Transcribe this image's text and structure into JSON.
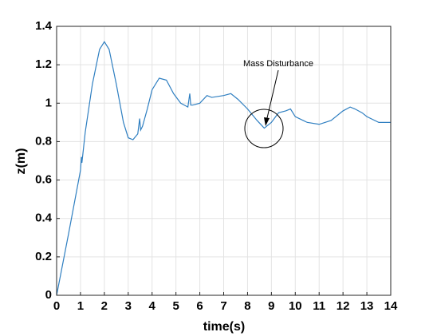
{
  "chart_data": {
    "type": "line",
    "xlabel": "time(s)",
    "ylabel": "z(m)",
    "annotation": "Mass Disturbance",
    "x": [
      0,
      0.5,
      1,
      1.04,
      1.06,
      1.2,
      1.5,
      1.8,
      2.0,
      2.2,
      2.5,
      2.8,
      3.0,
      3.2,
      3.4,
      3.48,
      3.52,
      3.6,
      3.8,
      4.0,
      4.3,
      4.6,
      4.9,
      5.2,
      5.5,
      5.58,
      5.62,
      5.7,
      6.0,
      6.3,
      6.5,
      7.0,
      7.3,
      7.6,
      8.0,
      8.4,
      8.7,
      9.0,
      9.3,
      9.6,
      9.8,
      10.0,
      10.5,
      11.0,
      11.5,
      12.0,
      12.3,
      12.5,
      12.8,
      13.0,
      13.5,
      14.0
    ],
    "series": [
      {
        "color": "#2f7fc1",
        "values": [
          0,
          0.32,
          0.65,
          0.72,
          0.69,
          0.85,
          1.1,
          1.28,
          1.32,
          1.28,
          1.1,
          0.9,
          0.82,
          0.81,
          0.84,
          0.92,
          0.86,
          0.88,
          0.97,
          1.07,
          1.13,
          1.12,
          1.05,
          1.0,
          0.98,
          1.05,
          0.99,
          0.99,
          1.0,
          1.04,
          1.03,
          1.04,
          1.05,
          1.02,
          0.97,
          0.91,
          0.87,
          0.9,
          0.95,
          0.96,
          0.97,
          0.93,
          0.9,
          0.89,
          0.91,
          0.96,
          0.98,
          0.97,
          0.95,
          0.93,
          0.9,
          0.9
        ]
      }
    ],
    "xlim": [
      0,
      14
    ],
    "xticks": [
      0,
      1,
      2,
      3,
      4,
      5,
      6,
      7,
      8,
      9,
      10,
      11,
      12,
      13,
      14
    ],
    "ylim": [
      0,
      1.4
    ],
    "yticks": [
      0,
      0.2,
      0.4,
      0.6,
      0.8,
      1,
      1.2,
      1.4
    ],
    "grid": true
  }
}
